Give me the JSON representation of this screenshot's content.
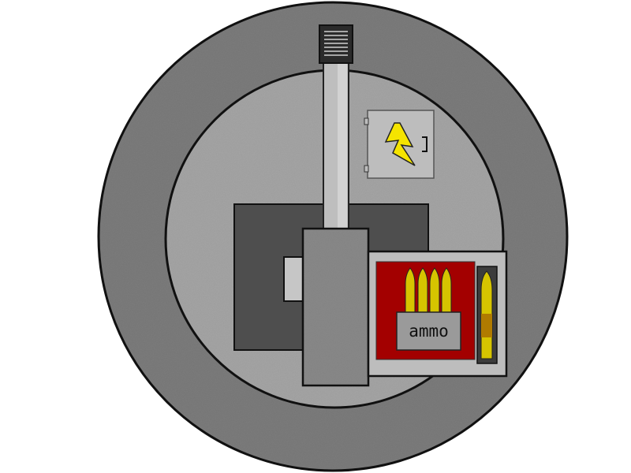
{
  "sprite": {
    "ammo_box": {
      "label": "ammo",
      "background_color": "#a30000"
    },
    "electric_box": {
      "icon": "lightning-bolt-icon",
      "bolt_color": "#f5e400"
    },
    "colors": {
      "outer_ring": "#7d7d7d",
      "inner_disc": "#a6a6a6",
      "base_block": "#4e4e4e",
      "barrel": "#bebebe",
      "muzzle": "#2b2b2b",
      "turret_body": "#8a8a8a",
      "bullet_brass": "#d6c400",
      "bullet_tip": "#b07b00"
    }
  }
}
